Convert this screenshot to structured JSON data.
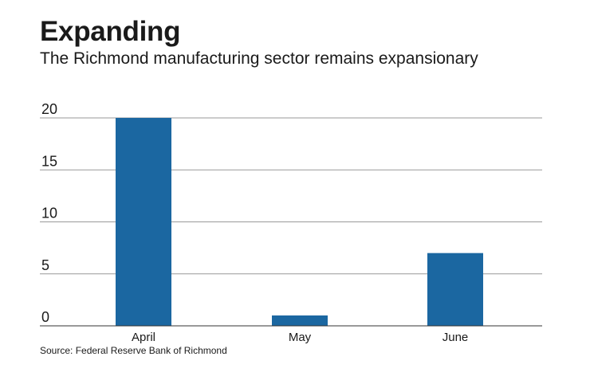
{
  "header": {
    "title": "Expanding",
    "subtitle": "The Richmond manufacturing sector remains expansionary"
  },
  "footer": {
    "source": "Source: Federal Reserve Bank of Richmond"
  },
  "chart_data": {
    "type": "bar",
    "title": "Expanding",
    "subtitle": "The Richmond manufacturing sector remains expansionary",
    "categories": [
      "April",
      "May",
      "June"
    ],
    "values": [
      20,
      1,
      7
    ],
    "xlabel": "",
    "ylabel": "",
    "ylim": [
      0,
      20
    ],
    "yticks": [
      0,
      5,
      10,
      15,
      20
    ],
    "grid": true,
    "bar_color": "#1b67a1"
  }
}
